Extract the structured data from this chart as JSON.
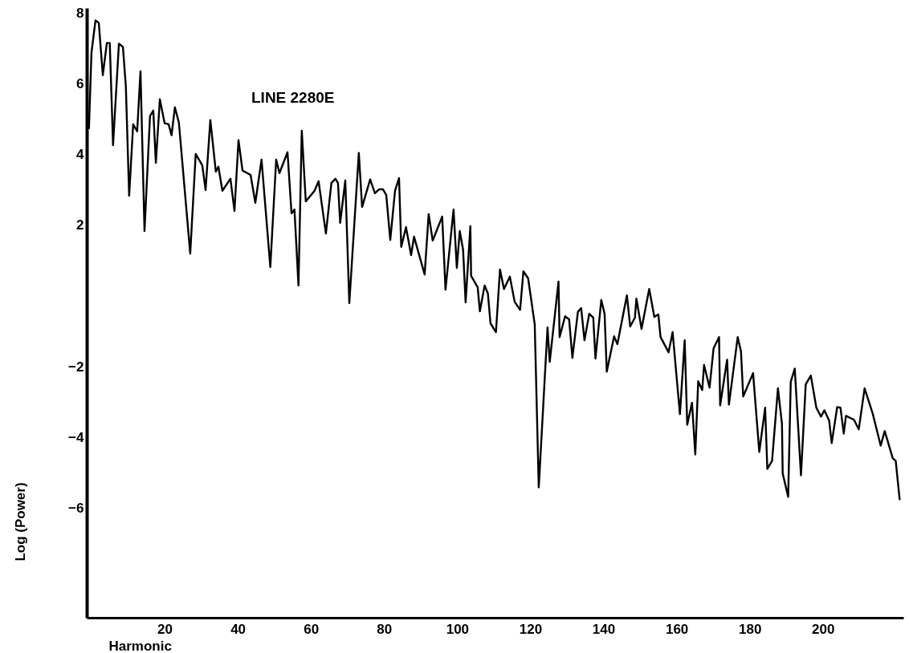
{
  "chart_data": {
    "type": "line",
    "title": "LINE 2280E",
    "xlabel": "Harmonic",
    "ylabel": "Log (Power)",
    "xlim": [
      -1.3,
      222
    ],
    "ylim": [
      -9.1,
      8.15
    ],
    "xticks": [
      20,
      40,
      60,
      80,
      100,
      120,
      140,
      160,
      180,
      200
    ],
    "yticks": [
      -6,
      -4,
      -2,
      2,
      4,
      6,
      8
    ],
    "grid": false,
    "marker": "none",
    "line_style": "solid",
    "x": [
      -0.7,
      0.0,
      1.1,
      2.0,
      3.1,
      4.2,
      5.0,
      5.9,
      7.5,
      8.6,
      9.4,
      10.3,
      11.4,
      12.5,
      13.4,
      14.5,
      16.0,
      16.9,
      17.6,
      18.7,
      20.0,
      21.1,
      21.9,
      22.8,
      23.9,
      27.0,
      28.5,
      30.3,
      31.2,
      32.5,
      34.0,
      34.7,
      35.8,
      38.0,
      39.1,
      40.2,
      41.3,
      43.5,
      44.8,
      46.5,
      48.9,
      50.5,
      51.4,
      53.6,
      54.7,
      55.5,
      56.6,
      57.5,
      58.6,
      61.0,
      62.1,
      64.1,
      65.6,
      66.7,
      67.4,
      68.0,
      69.4,
      70.5,
      73.1,
      74.0,
      76.2,
      77.5,
      78.6,
      79.7,
      80.6,
      81.7,
      83.0,
      84.1,
      84.7,
      86.0,
      87.4,
      88.2,
      91.1,
      92.2,
      93.3,
      95.9,
      96.8,
      99.0,
      99.9,
      100.7,
      101.6,
      102.3,
      103.6,
      103.8,
      105.6,
      106.2,
      107.5,
      108.4,
      109.1,
      110.6,
      111.7,
      112.8,
      114.4,
      115.7,
      117.2,
      118.1,
      119.4,
      121.2,
      122.3,
      124.7,
      125.3,
      127.7,
      128.0,
      129.5,
      130.6,
      131.5,
      133.0,
      133.9,
      134.8,
      136.1,
      137.2,
      137.8,
      139.4,
      140.3,
      140.9,
      142.9,
      143.8,
      146.4,
      147.3,
      148.6,
      149.0,
      150.4,
      152.5,
      153.9,
      155.0,
      155.6,
      157.8,
      158.9,
      160.9,
      162.2,
      162.9,
      164.2,
      165.1,
      165.9,
      167.0,
      167.5,
      169.0,
      170.1,
      171.6,
      171.9,
      173.8,
      174.3,
      176.7,
      177.6,
      178.2,
      180.9,
      182.6,
      184.2,
      184.8,
      186.1,
      187.7,
      188.8,
      189.0,
      190.5,
      191.2,
      192.3,
      194.0,
      195.3,
      196.7,
      198.2,
      199.5,
      200.4,
      201.7,
      202.4,
      203.9,
      204.8,
      205.7,
      206.3,
      208.5,
      209.8,
      211.4,
      213.6,
      215.8,
      216.9,
      219.1,
      219.9,
      221.0
    ],
    "values": [
      4.73,
      6.89,
      7.8,
      7.73,
      6.25,
      7.16,
      7.16,
      4.27,
      7.14,
      7.05,
      5.93,
      2.84,
      4.86,
      4.66,
      6.36,
      1.84,
      5.09,
      5.25,
      3.77,
      5.57,
      4.89,
      4.86,
      4.55,
      5.34,
      4.91,
      1.2,
      4.02,
      3.7,
      3.0,
      4.98,
      3.52,
      3.66,
      2.98,
      3.32,
      2.41,
      4.41,
      3.55,
      3.43,
      2.64,
      3.86,
      0.82,
      3.86,
      3.48,
      4.07,
      2.34,
      2.45,
      0.3,
      4.68,
      2.68,
      2.98,
      3.25,
      1.77,
      3.2,
      3.32,
      3.2,
      2.07,
      3.27,
      -0.2,
      4.05,
      2.52,
      3.3,
      2.91,
      3.02,
      3.02,
      2.86,
      1.59,
      2.98,
      3.34,
      1.39,
      1.95,
      1.16,
      1.68,
      0.61,
      2.32,
      1.57,
      2.25,
      0.18,
      2.45,
      0.8,
      1.84,
      1.32,
      -0.18,
      1.98,
      0.57,
      0.25,
      -0.43,
      0.3,
      0.07,
      -0.77,
      -1.02,
      0.75,
      0.2,
      0.55,
      -0.16,
      -0.39,
      0.7,
      0.5,
      -0.8,
      -5.41,
      -0.89,
      -1.86,
      0.41,
      -1.16,
      -0.57,
      -0.66,
      -1.75,
      -0.45,
      -0.34,
      -1.25,
      -0.5,
      -0.61,
      -1.77,
      -0.11,
      -0.5,
      -2.14,
      -1.14,
      -1.36,
      0.02,
      -0.86,
      -0.61,
      -0.07,
      -0.93,
      0.2,
      -0.59,
      -0.52,
      -1.16,
      -1.59,
      -1.02,
      -3.34,
      -1.25,
      -3.64,
      -3.02,
      -4.48,
      -2.41,
      -2.66,
      -1.95,
      -2.59,
      -1.48,
      -1.16,
      -3.09,
      -1.8,
      -3.07,
      -1.16,
      -1.57,
      -2.84,
      -2.18,
      -4.41,
      -3.16,
      -4.89,
      -4.66,
      -2.61,
      -3.61,
      -5.02,
      -5.68,
      -2.43,
      -2.05,
      -5.07,
      -2.5,
      -2.25,
      -3.16,
      -3.41,
      -3.23,
      -3.52,
      -4.16,
      -3.14,
      -3.16,
      -3.89,
      -3.39,
      -3.5,
      -3.77,
      -2.61,
      -3.32,
      -4.23,
      -3.82,
      -4.59,
      -4.66,
      -5.77
    ],
    "color": "#000000"
  }
}
